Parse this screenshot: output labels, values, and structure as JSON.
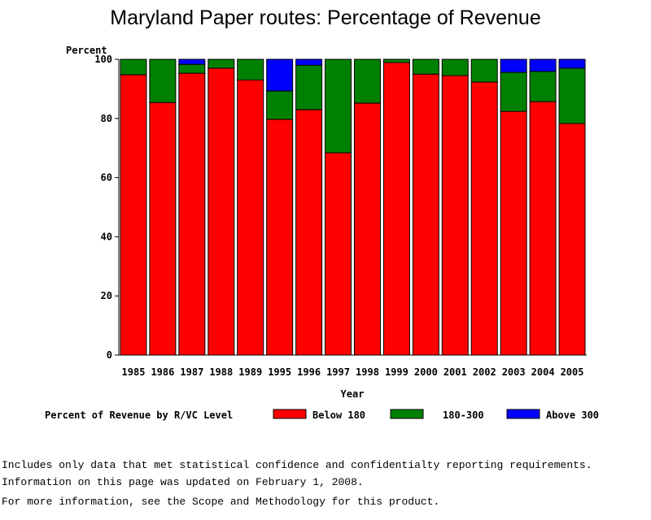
{
  "chart_data": {
    "type": "stacked-bar",
    "title": "Maryland Paper routes: Percentage of Revenue",
    "y_label": "Percent",
    "x_label": "Year",
    "legend_title": "Percent of Revenue by R/VC Level",
    "categories": [
      "1985",
      "1986",
      "1987",
      "1988",
      "1989",
      "1995",
      "1996",
      "1997",
      "1998",
      "1999",
      "2000",
      "2001",
      "2002",
      "2003",
      "2004",
      "2005"
    ],
    "series": [
      {
        "name": "Below 180",
        "color": "#ff0000",
        "values": [
          94.8,
          85.4,
          95.3,
          97,
          93,
          79.7,
          83,
          68.4,
          85.2,
          98.9,
          95,
          94.5,
          92.3,
          82.4,
          85.7,
          78.3
        ]
      },
      {
        "name": "180-300",
        "color": "#008000",
        "values": [
          5.2,
          14.6,
          3,
          3,
          7,
          9.6,
          15,
          31.6,
          14.8,
          1.1,
          5,
          5.5,
          7.7,
          13.2,
          10.2,
          18.7
        ]
      },
      {
        "name": "Above 300",
        "color": "#0000ff",
        "values": [
          0,
          0,
          1.7,
          0,
          0,
          10.7,
          2,
          0,
          0,
          0,
          0,
          0,
          0,
          4.4,
          4.1,
          3
        ]
      }
    ],
    "ylim": [
      0,
      100
    ],
    "yticks": [
      0,
      20,
      40,
      60,
      80,
      100
    ]
  },
  "notes": [
    "Includes only data that met statistical confidence and confidentialty reporting requirements.",
    "For more information, see the Scope and Methodology for this product."
  ],
  "update": "Information on this page was updated on February 1, 2008."
}
